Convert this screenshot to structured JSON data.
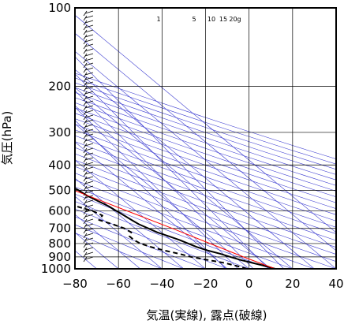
{
  "chart_data": {
    "type": "skew-t",
    "xlabel": "気温(実線), 露点(破線)",
    "ylabel": "気圧(hPa)",
    "y_scale": "log",
    "ylim": [
      1000,
      100
    ],
    "xlim": [
      -80,
      40
    ],
    "y_ticks": [
      100,
      200,
      300,
      400,
      500,
      600,
      700,
      800,
      900,
      1000
    ],
    "x_ticks": [
      -80,
      -60,
      -40,
      -20,
      0,
      20,
      40
    ],
    "mixing_ratio_labels": [
      "1",
      "5",
      "10",
      "15",
      "20g"
    ],
    "grid": true,
    "colors": {
      "temperature": "#000000",
      "dewpoint": "#000000",
      "parcel": "#ff0000",
      "guides": "#3a3ad0",
      "grid": "#000000"
    },
    "series": [
      {
        "name": "気温",
        "style": "solid",
        "points": [
          [
            1000,
            12
          ],
          [
            975,
            9
          ],
          [
            950,
            5
          ],
          [
            925,
            1
          ],
          [
            900,
            -2
          ],
          [
            875,
            -5
          ],
          [
            850,
            -9
          ],
          [
            825,
            -12
          ],
          [
            800,
            -14
          ],
          [
            775,
            -16
          ],
          [
            750,
            -19
          ],
          [
            725,
            -22
          ],
          [
            700,
            -24
          ],
          [
            675,
            -26
          ],
          [
            650,
            -27
          ],
          [
            625,
            -28
          ],
          [
            600,
            -29
          ],
          [
            575,
            -30
          ],
          [
            550,
            -32
          ],
          [
            525,
            -34
          ],
          [
            500,
            -35
          ],
          [
            475,
            -37
          ],
          [
            450,
            -38
          ],
          [
            425,
            -37
          ],
          [
            400,
            -38
          ],
          [
            375,
            -40
          ],
          [
            350,
            -41
          ],
          [
            325,
            -41
          ],
          [
            300,
            -42
          ],
          [
            275,
            -43
          ],
          [
            250,
            -44
          ],
          [
            225,
            -47
          ],
          [
            200,
            -51
          ],
          [
            175,
            -55
          ],
          [
            150,
            -58
          ],
          [
            125,
            -60
          ],
          [
            110,
            -63
          ],
          [
            100,
            -63
          ]
        ]
      },
      {
        "name": "露点",
        "style": "dashed",
        "points": [
          [
            1000,
            -1
          ],
          [
            975,
            -4
          ],
          [
            950,
            -8
          ],
          [
            925,
            -14
          ],
          [
            900,
            -20
          ],
          [
            875,
            -24
          ],
          [
            850,
            -29
          ],
          [
            825,
            -33
          ],
          [
            800,
            -36
          ],
          [
            775,
            -37
          ],
          [
            750,
            -37
          ],
          [
            725,
            -34
          ],
          [
            700,
            -35
          ],
          [
            675,
            -38
          ],
          [
            650,
            -42
          ],
          [
            625,
            -38
          ],
          [
            600,
            -40
          ],
          [
            575,
            -45
          ],
          [
            550,
            -50
          ],
          [
            525,
            -53
          ],
          [
            500,
            -57
          ],
          [
            475,
            -63
          ],
          [
            450,
            -66
          ],
          [
            425,
            -67
          ],
          [
            400,
            -68
          ],
          [
            375,
            -67
          ],
          [
            350,
            -70
          ]
        ]
      },
      {
        "name": "parcel",
        "style": "solid",
        "points": [
          [
            1000,
            12
          ],
          [
            900,
            4
          ],
          [
            800,
            -4
          ],
          [
            700,
            -13
          ],
          [
            600,
            -24
          ],
          [
            500,
            -37
          ],
          [
            400,
            -53
          ],
          [
            300,
            -74
          ],
          [
            250,
            -88
          ]
        ]
      }
    ]
  }
}
